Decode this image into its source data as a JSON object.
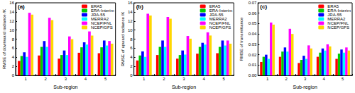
{
  "chart_data": [
    {
      "type": "bar",
      "title": "(a)",
      "x_label": "Sub-region",
      "y_label": "RMSE of downward radiance /K",
      "categories": [
        "1",
        "2",
        "3",
        "4",
        "5"
      ],
      "series": [
        {
          "name": "ERA5",
          "color": "#ff0000",
          "values": [
            3.2,
            4.4,
            3.7,
            5.0,
            4.9
          ]
        },
        {
          "name": "ERA-Interim",
          "color": "#00cc00",
          "values": [
            4.3,
            6.3,
            4.5,
            6.2,
            6.2
          ]
        },
        {
          "name": "JRA-55",
          "color": "#0000ff",
          "values": [
            5.1,
            7.6,
            5.5,
            7.3,
            7.7
          ]
        },
        {
          "name": "MERRA2",
          "color": "#00ffff",
          "values": [
            4.1,
            6.3,
            4.5,
            6.8,
            6.6
          ]
        },
        {
          "name": "NCEP/FNL",
          "color": "#ff00ff",
          "values": [
            13.8,
            12.7,
            8.6,
            9.7,
            7.6
          ]
        },
        {
          "name": "NCEP/GFS",
          "color": "#ffd700",
          "values": [
            13.4,
            12.2,
            8.0,
            8.8,
            7.0
          ]
        }
      ],
      "ylim": [
        0,
        16
      ],
      "yticks": [
        0,
        2,
        4,
        6,
        8,
        10,
        12,
        14,
        16
      ],
      "grid": false,
      "legend": "upper right"
    },
    {
      "type": "bar",
      "title": "(b)",
      "x_label": "Sub-region",
      "y_label": "RMSE of upward radiance /K",
      "categories": [
        "1",
        "2",
        "3",
        "4",
        "5"
      ],
      "series": [
        {
          "name": "ERA5",
          "color": "#ff0000",
          "values": [
            3.3,
            4.5,
            3.7,
            4.8,
            4.9
          ]
        },
        {
          "name": "ERA-Interim",
          "color": "#00cc00",
          "values": [
            4.4,
            6.3,
            4.5,
            6.3,
            6.3
          ]
        },
        {
          "name": "JRA-55",
          "color": "#0000ff",
          "values": [
            5.3,
            7.7,
            5.5,
            7.2,
            7.7
          ]
        },
        {
          "name": "MERRA2",
          "color": "#00ffff",
          "values": [
            4.1,
            6.3,
            4.6,
            6.8,
            6.6
          ]
        },
        {
          "name": "NCEP/FNL",
          "color": "#ff00ff",
          "values": [
            13.6,
            12.9,
            8.7,
            9.5,
            7.7
          ]
        },
        {
          "name": "NCEP/GFS",
          "color": "#ffd700",
          "values": [
            13.2,
            12.5,
            8.1,
            8.8,
            7.0
          ]
        }
      ],
      "ylim": [
        0,
        16
      ],
      "yticks": [
        0,
        2,
        4,
        6,
        8,
        10,
        12,
        14,
        16
      ],
      "grid": false,
      "legend": "upper right"
    },
    {
      "type": "bar",
      "title": "(c)",
      "x_label": "Sub-region",
      "y_label": "RMSE of transmittance",
      "categories": [
        "1",
        "2",
        "3",
        "4",
        "5"
      ],
      "series": [
        {
          "name": "ERA5",
          "color": "#ff0000",
          "values": [
            0.013,
            0.018,
            0.012,
            0.018,
            0.016
          ]
        },
        {
          "name": "ERA-Interim",
          "color": "#00cc00",
          "values": [
            0.018,
            0.023,
            0.015,
            0.022,
            0.021
          ]
        },
        {
          "name": "JRA-55",
          "color": "#0000ff",
          "values": [
            0.02,
            0.027,
            0.019,
            0.026,
            0.025
          ]
        },
        {
          "name": "MERRA2",
          "color": "#00ffff",
          "values": [
            0.016,
            0.023,
            0.016,
            0.024,
            0.022
          ]
        },
        {
          "name": "NCEP/FNL",
          "color": "#ff00ff",
          "values": [
            0.051,
            0.045,
            0.029,
            0.03,
            0.027
          ]
        },
        {
          "name": "NCEP/GFS",
          "color": "#ffd700",
          "values": [
            0.049,
            0.04,
            0.026,
            0.028,
            0.024
          ]
        }
      ],
      "ylim": [
        0,
        0.07
      ],
      "yticks": [
        {
          "value": 0,
          "label": "0.00"
        },
        0.01,
        0.02,
        0.03,
        0.04,
        0.05,
        0.06,
        0.07
      ],
      "grid": false,
      "legend": "upper right"
    }
  ]
}
